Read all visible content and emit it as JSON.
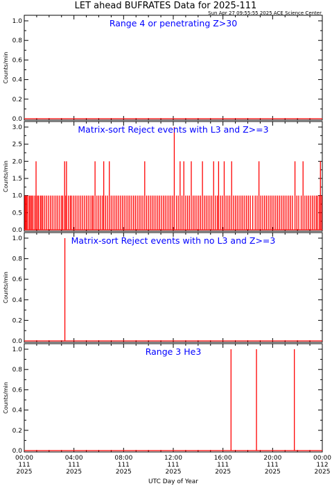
{
  "header": {
    "title": "LET ahead BUFRATES Data for 2025-111",
    "timestamp": "Sun Apr 27 09:55:55 2025 ACE Science Center"
  },
  "x_axis": {
    "label": "UTC Day of Year",
    "ticks": [
      {
        "time": "00:00",
        "doy": "111",
        "year": "2025"
      },
      {
        "time": "04:00",
        "doy": "111",
        "year": "2025"
      },
      {
        "time": "08:00",
        "doy": "111",
        "year": "2025"
      },
      {
        "time": "12:00",
        "doy": "111",
        "year": "2025"
      },
      {
        "time": "16:00",
        "doy": "111",
        "year": "2025"
      },
      {
        "time": "20:00",
        "doy": "111",
        "year": "2025"
      },
      {
        "time": "00:00",
        "doy": "112",
        "year": "2025"
      }
    ]
  },
  "colors": {
    "data": "#ff0000",
    "panel_title": "#0000ff",
    "axis": "#000000"
  },
  "chart_data": [
    {
      "type": "line",
      "title": "Range 4 or  penetrating Z>30",
      "ylabel": "Counts/min",
      "xlim": [
        0,
        24
      ],
      "ylim": [
        0,
        1.0
      ],
      "yticks": [
        "0.0",
        "0.2",
        "0.4",
        "0.6",
        "0.8",
        "1.0"
      ],
      "baseline": 0,
      "events": []
    },
    {
      "type": "line",
      "title": "Matrix-sort Reject events with L3 and Z>=3",
      "ylabel": "Counts/min",
      "xlim": [
        0,
        24
      ],
      "ylim": [
        0,
        3.0
      ],
      "yticks": [
        "0.0",
        "0.5",
        "1.0",
        "1.5",
        "2.0",
        "2.5",
        "3.0"
      ],
      "baseline": 0,
      "events": [
        [
          0.05,
          1
        ],
        [
          0.12,
          1
        ],
        [
          0.2,
          1
        ],
        [
          0.3,
          1
        ],
        [
          0.42,
          1
        ],
        [
          0.5,
          1
        ],
        [
          0.6,
          1
        ],
        [
          0.7,
          1
        ],
        [
          0.85,
          1
        ],
        [
          0.95,
          2
        ],
        [
          1.05,
          1
        ],
        [
          1.15,
          1
        ],
        [
          1.3,
          1
        ],
        [
          1.4,
          1
        ],
        [
          1.5,
          1
        ],
        [
          1.65,
          1
        ],
        [
          1.8,
          1
        ],
        [
          1.95,
          1
        ],
        [
          2.1,
          1
        ],
        [
          2.25,
          1
        ],
        [
          2.4,
          1
        ],
        [
          2.55,
          1
        ],
        [
          2.7,
          1
        ],
        [
          2.85,
          1
        ],
        [
          3.0,
          1
        ],
        [
          3.1,
          1
        ],
        [
          3.25,
          2
        ],
        [
          3.35,
          1
        ],
        [
          3.4,
          2
        ],
        [
          3.55,
          1
        ],
        [
          3.7,
          1
        ],
        [
          3.8,
          1
        ],
        [
          3.95,
          1
        ],
        [
          4.1,
          1
        ],
        [
          4.25,
          1
        ],
        [
          4.4,
          1
        ],
        [
          4.55,
          1
        ],
        [
          4.7,
          1
        ],
        [
          4.85,
          1
        ],
        [
          5.0,
          1
        ],
        [
          5.15,
          1
        ],
        [
          5.3,
          1
        ],
        [
          5.45,
          1
        ],
        [
          5.55,
          1
        ],
        [
          5.7,
          2
        ],
        [
          5.85,
          1
        ],
        [
          6.0,
          1
        ],
        [
          6.15,
          1
        ],
        [
          6.3,
          1
        ],
        [
          6.4,
          2
        ],
        [
          6.55,
          1
        ],
        [
          6.7,
          1
        ],
        [
          6.85,
          2
        ],
        [
          7.0,
          1
        ],
        [
          7.15,
          1
        ],
        [
          7.3,
          1
        ],
        [
          7.45,
          1
        ],
        [
          7.6,
          1
        ],
        [
          7.75,
          1
        ],
        [
          7.9,
          1
        ],
        [
          8.05,
          1
        ],
        [
          8.2,
          1
        ],
        [
          8.35,
          1
        ],
        [
          8.5,
          1
        ],
        [
          8.65,
          1
        ],
        [
          8.8,
          1
        ],
        [
          8.95,
          1
        ],
        [
          9.1,
          1
        ],
        [
          9.25,
          1
        ],
        [
          9.4,
          1
        ],
        [
          9.55,
          1
        ],
        [
          9.7,
          2
        ],
        [
          9.85,
          1
        ],
        [
          10.0,
          1
        ],
        [
          10.15,
          1
        ],
        [
          10.3,
          1
        ],
        [
          10.45,
          1
        ],
        [
          10.6,
          1
        ],
        [
          10.75,
          1
        ],
        [
          10.9,
          1
        ],
        [
          11.05,
          1
        ],
        [
          11.2,
          1
        ],
        [
          11.35,
          1
        ],
        [
          11.5,
          1
        ],
        [
          11.65,
          1
        ],
        [
          11.8,
          1
        ],
        [
          11.95,
          1
        ],
        [
          12.08,
          3
        ],
        [
          12.25,
          1
        ],
        [
          12.4,
          1
        ],
        [
          12.55,
          2
        ],
        [
          12.7,
          1
        ],
        [
          12.85,
          2
        ],
        [
          13.0,
          1
        ],
        [
          13.15,
          1
        ],
        [
          13.3,
          1
        ],
        [
          13.45,
          2
        ],
        [
          13.6,
          1
        ],
        [
          13.75,
          1
        ],
        [
          13.9,
          1
        ],
        [
          14.05,
          1
        ],
        [
          14.2,
          1
        ],
        [
          14.35,
          2
        ],
        [
          14.5,
          1
        ],
        [
          14.65,
          1
        ],
        [
          14.8,
          1
        ],
        [
          14.95,
          1
        ],
        [
          15.1,
          1
        ],
        [
          15.25,
          2
        ],
        [
          15.4,
          1
        ],
        [
          15.55,
          1
        ],
        [
          15.65,
          2
        ],
        [
          15.8,
          1
        ],
        [
          15.95,
          1
        ],
        [
          16.1,
          2
        ],
        [
          16.25,
          1
        ],
        [
          16.4,
          1
        ],
        [
          16.55,
          1
        ],
        [
          16.7,
          2
        ],
        [
          16.85,
          1
        ],
        [
          17.0,
          1
        ],
        [
          17.15,
          1
        ],
        [
          17.3,
          1
        ],
        [
          17.45,
          1
        ],
        [
          17.6,
          1
        ],
        [
          17.75,
          1
        ],
        [
          17.9,
          1
        ],
        [
          18.05,
          1
        ],
        [
          18.2,
          1
        ],
        [
          18.4,
          1
        ],
        [
          18.6,
          1
        ],
        [
          18.75,
          1
        ],
        [
          18.9,
          2
        ],
        [
          19.05,
          1
        ],
        [
          19.2,
          1
        ],
        [
          19.35,
          1
        ],
        [
          19.5,
          1
        ],
        [
          19.65,
          1
        ],
        [
          19.8,
          1
        ],
        [
          19.95,
          1
        ],
        [
          20.1,
          1
        ],
        [
          20.25,
          1
        ],
        [
          20.4,
          1
        ],
        [
          20.55,
          1
        ],
        [
          20.7,
          1
        ],
        [
          20.85,
          1
        ],
        [
          21.0,
          1
        ],
        [
          21.15,
          1
        ],
        [
          21.3,
          1
        ],
        [
          21.45,
          1
        ],
        [
          21.6,
          1
        ],
        [
          21.8,
          2
        ],
        [
          21.95,
          1
        ],
        [
          22.1,
          1
        ],
        [
          22.3,
          1
        ],
        [
          22.45,
          2
        ],
        [
          22.6,
          1
        ],
        [
          22.75,
          1
        ],
        [
          22.9,
          1
        ],
        [
          23.05,
          1
        ],
        [
          23.2,
          1
        ],
        [
          23.35,
          1
        ],
        [
          23.5,
          1
        ],
        [
          23.6,
          1
        ],
        [
          23.75,
          1
        ],
        [
          23.85,
          2
        ],
        [
          23.95,
          1
        ]
      ]
    },
    {
      "type": "line",
      "title": "Matrix-sort Reject events with no L3 and Z>=3",
      "ylabel": "Counts/min",
      "xlim": [
        0,
        24
      ],
      "ylim": [
        0,
        1.0
      ],
      "yticks": [
        "0.0",
        "0.2",
        "0.4",
        "0.6",
        "0.8",
        "1.0"
      ],
      "baseline": 0,
      "events": [
        [
          3.27,
          1
        ]
      ]
    },
    {
      "type": "line",
      "title": "Range 3 He3",
      "ylabel": "Counts/min",
      "xlim": [
        0,
        24
      ],
      "ylim": [
        0,
        1.0
      ],
      "yticks": [
        "0.0",
        "0.2",
        "0.4",
        "0.6",
        "0.8",
        "1.0"
      ],
      "baseline": 0,
      "events": [
        [
          16.65,
          1
        ],
        [
          18.7,
          1
        ],
        [
          21.75,
          1
        ]
      ]
    }
  ]
}
